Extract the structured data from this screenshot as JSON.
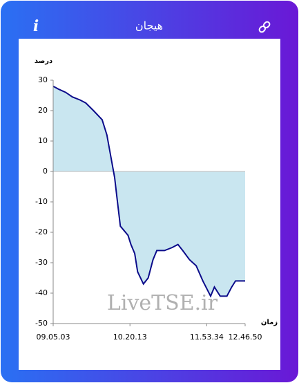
{
  "header": {
    "title": "هیجان",
    "info": "i"
  },
  "watermark": "LiveTSE.ir",
  "chart_data": {
    "type": "area",
    "ylabel": "درصد",
    "xlabel": "زمان",
    "x": [
      0,
      3,
      6.5,
      10,
      14,
      17,
      21,
      25.5,
      28,
      30,
      32,
      33.5,
      35,
      37,
      39,
      40.5,
      42.5,
      44,
      47,
      49.5,
      52,
      54,
      58,
      62,
      65,
      67.5,
      71,
      74.5,
      78,
      82,
      84,
      87,
      90.5,
      93,
      95,
      100
    ],
    "values": [
      28,
      27,
      26,
      24.5,
      23.5,
      22.5,
      20,
      17,
      12,
      5,
      -2,
      -10,
      -18,
      -19.5,
      -21,
      -24,
      -27,
      -33,
      -37,
      -35,
      -29,
      -26,
      -26,
      -25,
      -24,
      -26,
      -29,
      -31,
      -36,
      -41,
      -38,
      -41,
      -41,
      -38,
      -36,
      -36
    ],
    "line_color": "#0b0b8a",
    "fill_color": "#c9e6f0",
    "xlim": [
      0,
      100
    ],
    "xticks": [
      {
        "value": 0,
        "label": "09.05.03"
      },
      {
        "value": 40,
        "label": "10.20.13"
      },
      {
        "value": 80,
        "label": "11.53.34"
      },
      {
        "value": 100,
        "label": "12.46.50"
      }
    ],
    "ylim": [
      -50,
      30
    ],
    "yticks": [
      -50,
      -40,
      -30,
      -20,
      -10,
      0,
      10,
      20,
      30
    ]
  }
}
